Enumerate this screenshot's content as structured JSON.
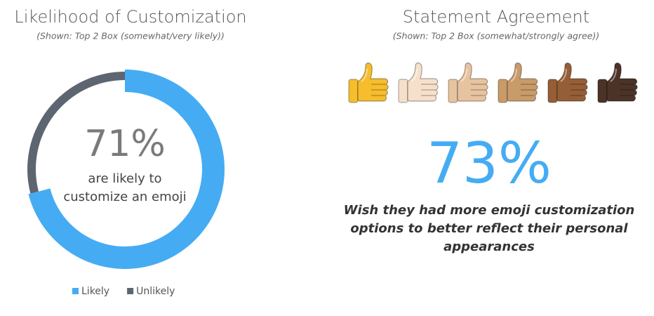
{
  "chart_data": {
    "type": "pie",
    "title": "Likelihood of Customization",
    "subtitle": "(Shown: Top 2 Box (somewhat/very likely))",
    "categories": [
      "Likely",
      "Unlikely"
    ],
    "values": [
      71,
      29
    ],
    "value_labels": [
      "71%",
      null
    ],
    "colors": [
      "#45acf3",
      "#5d6670"
    ],
    "center_text": [
      "are likely to",
      "customize an emoji"
    ],
    "legend": "bottom"
  },
  "statement": {
    "title": "Statement Agreement",
    "subtitle": "(Shown: Top 2 Box (somewhat/strongly agree))",
    "percent": "73%",
    "text": [
      "Wish they had more emoji customization",
      "options to better reflect their personal",
      "appearances"
    ]
  }
}
